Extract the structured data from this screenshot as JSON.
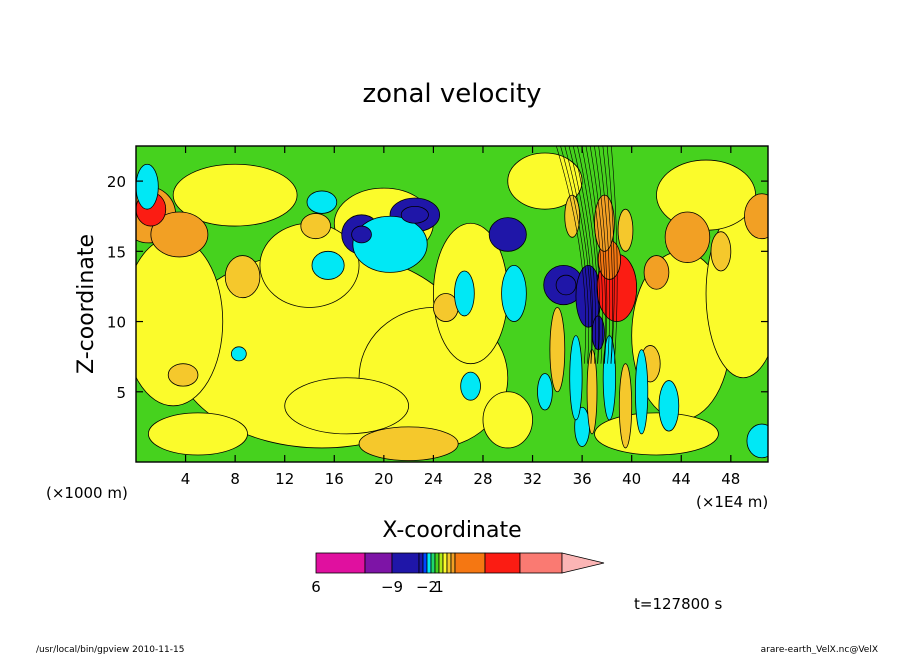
{
  "chart_data": {
    "type": "heatmap",
    "title": "zonal velocity",
    "xlabel": "X-coordinate",
    "ylabel": "Z-coordinate",
    "x_unit_left": "(×1000 m)",
    "x_unit_right": "(×1E4 m)",
    "x_ticks": [
      4,
      8,
      12,
      16,
      20,
      24,
      28,
      32,
      36,
      40,
      44,
      48
    ],
    "y_ticks": [
      5,
      10,
      15,
      20
    ],
    "xlim": [
      0,
      51
    ],
    "ylim": [
      0,
      22.5
    ],
    "time_label": "t=127800 s",
    "colorbar": {
      "tick_labels": [
        {
          "value": -9,
          "label": "−9"
        },
        {
          "value": -2,
          "label": "−2"
        },
        {
          "value": 1,
          "label": "1"
        },
        {
          "value": 6,
          "label": "6"
        }
      ],
      "levels": [
        {
          "min": -15,
          "max": -12,
          "color": "#e0109f"
        },
        {
          "min": -12,
          "max": -9,
          "color": "#7d14a6"
        },
        {
          "min": -9,
          "max": -6,
          "color": "#1f16a8"
        },
        {
          "min": -6,
          "max": -3,
          "color": "#1f16a8"
        },
        {
          "min": -3,
          "max": -2,
          "color": "#0044ff"
        },
        {
          "min": -2,
          "max": -1,
          "color": "#00e8f5"
        },
        {
          "min": -1,
          "max": 0,
          "color": "#1fd86a"
        },
        {
          "min": 0,
          "max": 1,
          "color": "#46d21e"
        },
        {
          "min": 1,
          "max": 2,
          "color": "#b0e81a"
        },
        {
          "min": 2,
          "max": 3,
          "color": "#fbfb2b"
        },
        {
          "min": 3,
          "max": 4,
          "color": "#f5c82c"
        },
        {
          "min": 4,
          "max": 5,
          "color": "#f2a024"
        },
        {
          "min": 5,
          "max": 8,
          "color": "#f57712"
        },
        {
          "min": 8,
          "max": 11,
          "color": "#fb1c13"
        },
        {
          "min": 11,
          "max": 14,
          "color": "#fa7a72"
        },
        {
          "min": 14,
          "max": 17,
          "color": "#fbb5b5"
        }
      ]
    }
  },
  "footer": {
    "left": "/usr/local/bin/gpview  2010-11-15",
    "right": "arare-earth_VelX.nc@VelX"
  }
}
